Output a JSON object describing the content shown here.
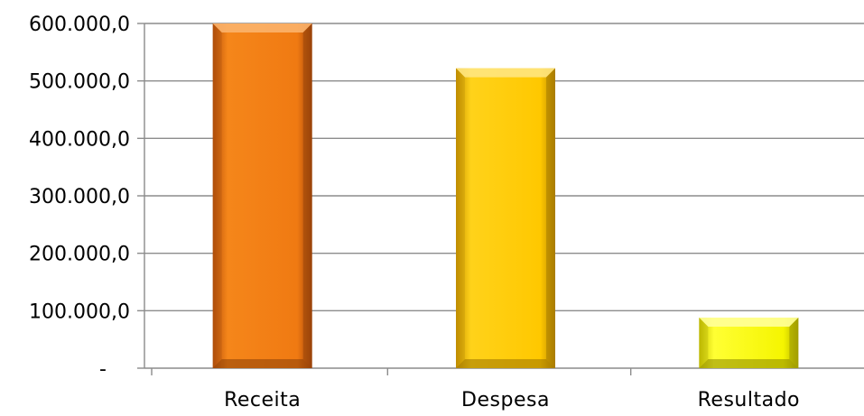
{
  "chart_data": {
    "type": "bar",
    "categories": [
      "Receita",
      "Despesa",
      "Resultado"
    ],
    "values": [
      601000,
      522000,
      88000
    ],
    "ylim": [
      0,
      600000
    ],
    "yticks": [
      0,
      100000,
      200000,
      300000,
      400000,
      500000,
      600000
    ],
    "ytick_labels": [
      "-",
      "100.000,0",
      "200.000,0",
      "300.000,0",
      "400.000,0",
      "500.000,0",
      "600.000,0"
    ],
    "grid": true,
    "colors": [
      "#f07a12",
      "#ffcc00",
      "#ffff00"
    ],
    "title": "",
    "xlabel": "",
    "ylabel": ""
  }
}
